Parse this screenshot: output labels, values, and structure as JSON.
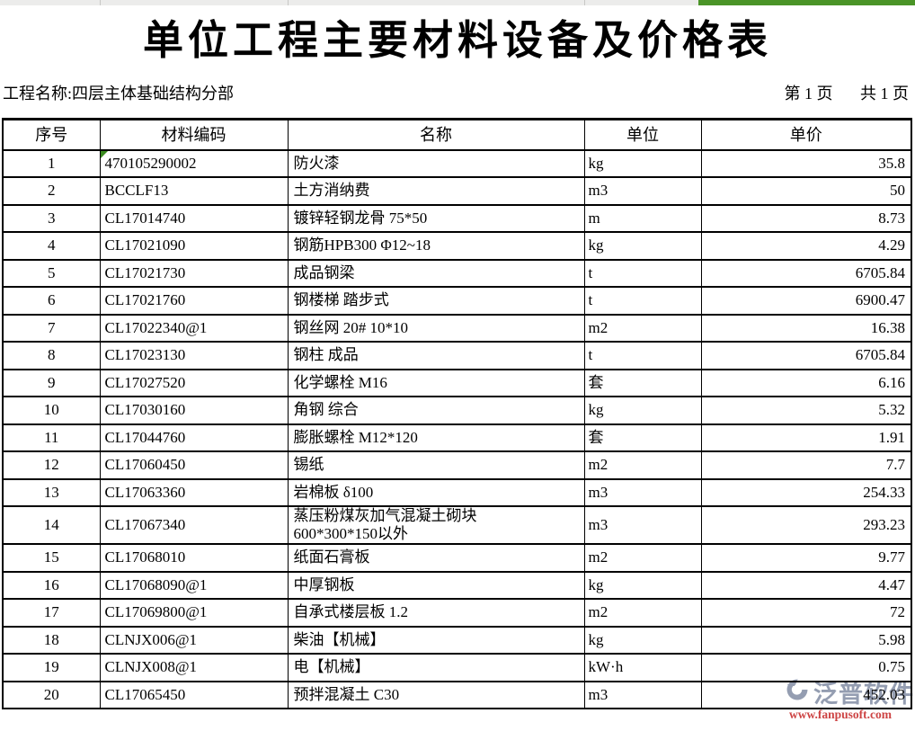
{
  "title": "单位工程主要材料设备及价格表",
  "meta": {
    "project": "工程名称:四层主体基础结构分部",
    "page_current": "第 1 页",
    "page_total": "共 1 页"
  },
  "table": {
    "headers": [
      "序号",
      "材料编码",
      "名称",
      "单位",
      "单价"
    ],
    "rows": [
      [
        "1",
        "470105290002",
        "防火漆",
        "kg",
        "35.8"
      ],
      [
        "2",
        "BCCLF13",
        "土方消纳费",
        "m3",
        "50"
      ],
      [
        "3",
        "CL17014740",
        "镀锌轻钢龙骨 75*50",
        "m",
        "8.73"
      ],
      [
        "4",
        "CL17021090",
        "钢筋HPB300  Φ12~18",
        "kg",
        "4.29"
      ],
      [
        "5",
        "CL17021730",
        "成品钢梁",
        "t",
        "6705.84"
      ],
      [
        "6",
        "CL17021760",
        "钢楼梯 踏步式",
        "t",
        "6900.47"
      ],
      [
        "7",
        "CL17022340@1",
        "钢丝网 20# 10*10",
        "m2",
        "16.38"
      ],
      [
        "8",
        "CL17023130",
        "钢柱 成品",
        "t",
        "6705.84"
      ],
      [
        "9",
        "CL17027520",
        "化学螺栓 M16",
        "套",
        "6.16"
      ],
      [
        "10",
        "CL17030160",
        "角钢 综合",
        "kg",
        "5.32"
      ],
      [
        "11",
        "CL17044760",
        "膨胀螺栓 M12*120",
        "套",
        "1.91"
      ],
      [
        "12",
        "CL17060450",
        "锡纸",
        "m2",
        "7.7"
      ],
      [
        "13",
        "CL17063360",
        "岩棉板  δ100",
        "m3",
        "254.33"
      ],
      [
        "14",
        "CL17067340",
        "蒸压粉煤灰加气混凝土砌块\n600*300*150以外",
        "m3",
        "293.23"
      ],
      [
        "15",
        "CL17068010",
        "纸面石膏板",
        "m2",
        "9.77"
      ],
      [
        "16",
        "CL17068090@1",
        "中厚钢板",
        "kg",
        "4.47"
      ],
      [
        "17",
        "CL17069800@1",
        "自承式楼层板 1.2",
        "m2",
        "72"
      ],
      [
        "18",
        "CLNJX006@1",
        "柴油【机械】",
        "kg",
        "5.98"
      ],
      [
        "19",
        "CLNJX008@1",
        "电【机械】",
        "kW·h",
        "0.75"
      ],
      [
        "20",
        "CL17065450",
        "预拌混凝土 C30",
        "m3",
        "452.03"
      ]
    ],
    "flagged_cell_row_index": 0
  },
  "watermark": {
    "brand": "泛普软件",
    "url": "www.fanpusoft.com"
  },
  "colors": {
    "selection_green": "#4a9427",
    "flag_green": "#3a8a1f",
    "watermark_gray_blue": "#8b95ab",
    "watermark_red": "#c93434",
    "strip_bg": "#ececeb",
    "strip_divider": "#c8c8c6"
  }
}
